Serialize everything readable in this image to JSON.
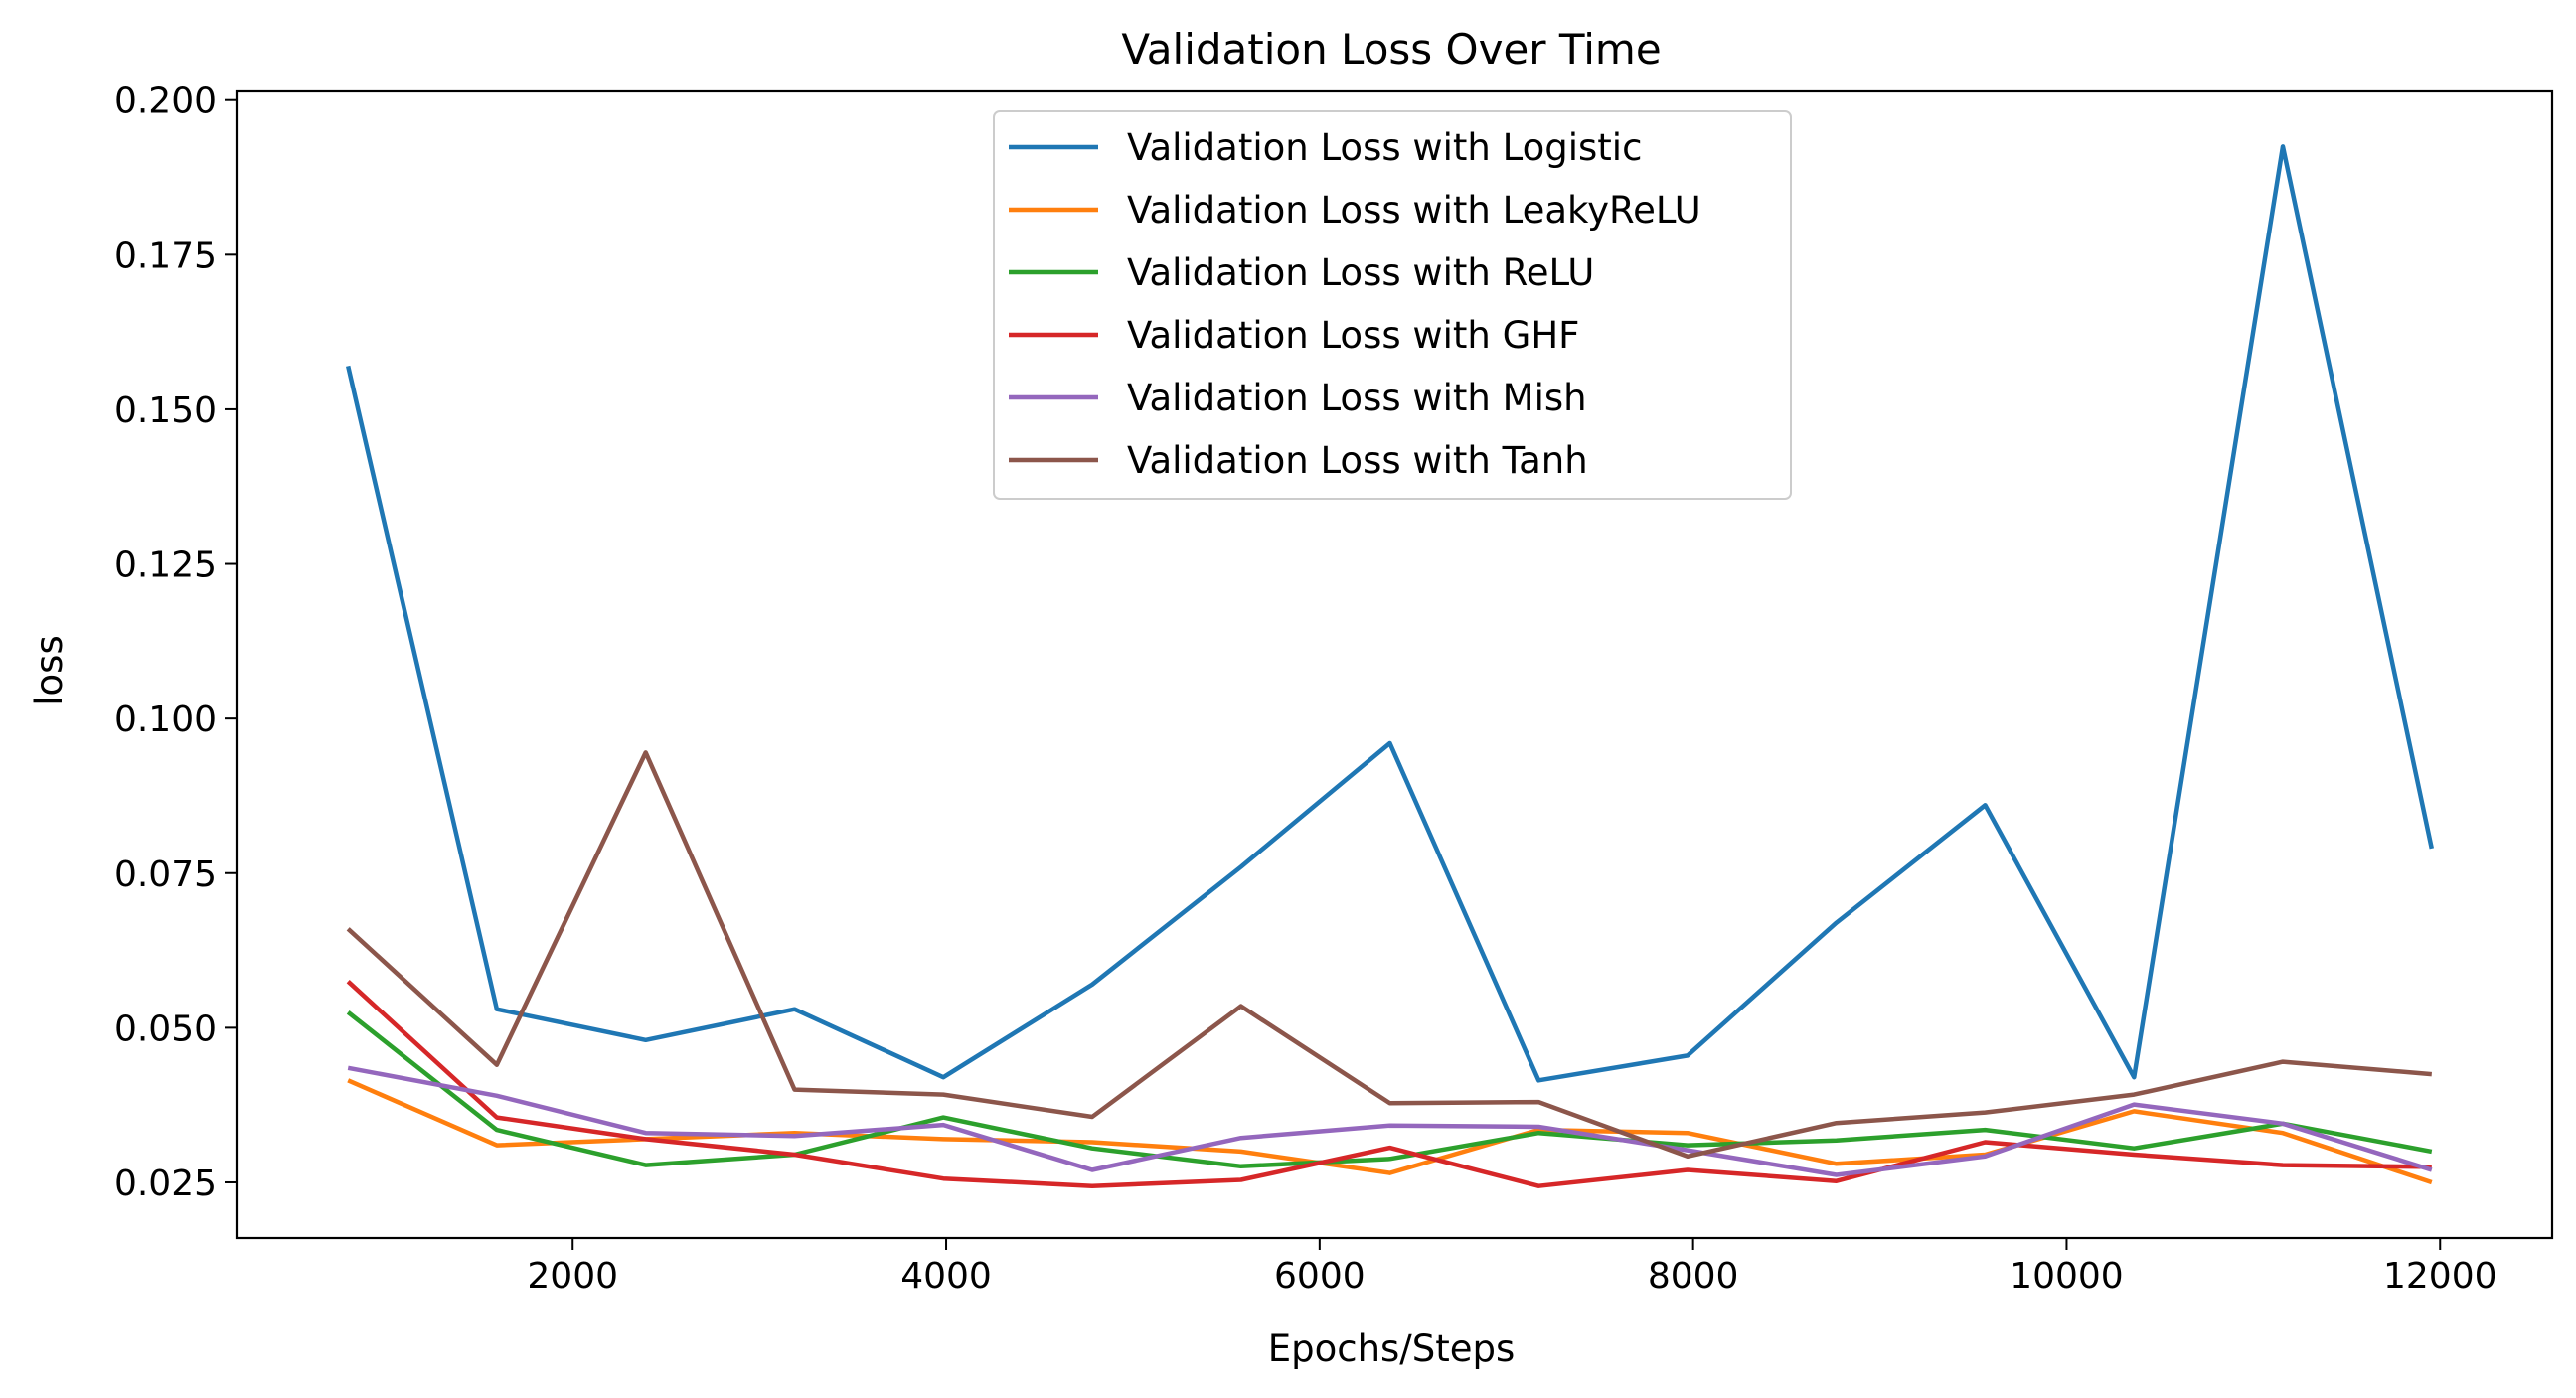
{
  "chart_data": {
    "type": "line",
    "title": "Validation Loss Over Time",
    "xlabel": "Epochs/Steps",
    "ylabel": "loss",
    "xlim": [
      200,
      12600
    ],
    "ylim": [
      0.016,
      0.2014
    ],
    "xticks": [
      2000,
      4000,
      6000,
      8000,
      10000,
      12000
    ],
    "xtick_labels": [
      "2000",
      "4000",
      "6000",
      "8000",
      "10000",
      "12000"
    ],
    "yticks": [
      0.025,
      0.05,
      0.075,
      0.1,
      0.125,
      0.15,
      0.175,
      0.2
    ],
    "ytick_labels": [
      "0.025",
      "0.050",
      "0.075",
      "0.100",
      "0.125",
      "0.150",
      "0.175",
      "0.200"
    ],
    "grid": false,
    "legend_position": "top-center",
    "x": [
      797,
      1594,
      2391,
      3188,
      3985,
      4782,
      5579,
      6376,
      7173,
      7970,
      8767,
      9564,
      10361,
      11158,
      11955
    ],
    "series": [
      {
        "name": "Validation Loss with Logistic",
        "color": "#1f77b4",
        "values": [
          0.157,
          0.053,
          0.048,
          0.053,
          0.042,
          0.057,
          0.076,
          0.096,
          0.0415,
          0.0455,
          0.067,
          0.086,
          0.042,
          0.1925,
          0.079
        ]
      },
      {
        "name": "Validation Loss with LeakyReLU",
        "color": "#ff7f0e",
        "values": [
          0.0415,
          0.031,
          0.032,
          0.033,
          0.032,
          0.0315,
          0.03,
          0.0265,
          0.0335,
          0.033,
          0.028,
          0.0295,
          0.0365,
          0.033,
          0.025
        ]
      },
      {
        "name": "Validation Loss with ReLU",
        "color": "#2ca02c",
        "values": [
          0.0525,
          0.0335,
          0.0278,
          0.0295,
          0.0355,
          0.0305,
          0.0276,
          0.0288,
          0.033,
          0.031,
          0.0318,
          0.0335,
          0.0305,
          0.0345,
          0.03
        ]
      },
      {
        "name": "Validation Loss with GHF",
        "color": "#d62728",
        "values": [
          0.0575,
          0.0355,
          0.032,
          0.0295,
          0.0256,
          0.0244,
          0.0254,
          0.0306,
          0.0244,
          0.027,
          0.0252,
          0.0315,
          0.0295,
          0.0278,
          0.0275
        ]
      },
      {
        "name": "Validation Loss with Mish",
        "color": "#9467bd",
        "values": [
          0.0435,
          0.039,
          0.033,
          0.0325,
          0.0343,
          0.027,
          0.0322,
          0.0342,
          0.034,
          0.0302,
          0.0262,
          0.0292,
          0.0376,
          0.0345,
          0.027
        ]
      },
      {
        "name": "Validation Loss with Tanh",
        "color": "#8c564b",
        "values": [
          0.066,
          0.044,
          0.0945,
          0.04,
          0.0392,
          0.0356,
          0.0535,
          0.0378,
          0.038,
          0.0292,
          0.0346,
          0.0363,
          0.0392,
          0.0445,
          0.0425
        ]
      }
    ]
  }
}
